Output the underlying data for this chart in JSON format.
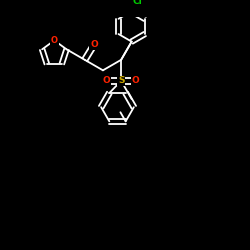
{
  "background_color": "#000000",
  "atom_colors": {
    "O": "#ff2200",
    "S": "#ccaa00",
    "Cl": "#00cc00"
  },
  "line_color": "#ffffff",
  "figsize": [
    2.5,
    2.5
  ],
  "dpi": 100,
  "lw": 1.3
}
